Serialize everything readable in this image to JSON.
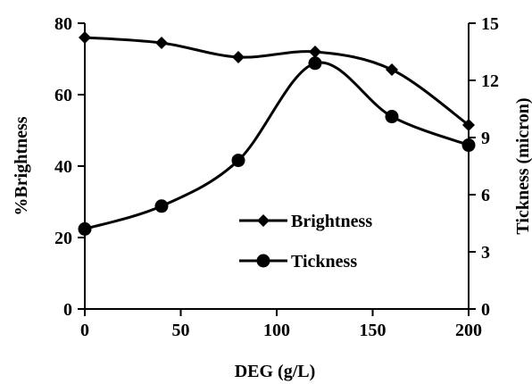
{
  "chart_data": {
    "type": "line",
    "title": "",
    "xlabel": "DEG (g/L)",
    "ylabel_left": "%Brightness",
    "ylabel_right": "Tickness (micron)",
    "x": [
      0,
      40,
      80,
      120,
      160,
      200
    ],
    "xlim": [
      0,
      200
    ],
    "xticks": [
      "0",
      "50",
      "100",
      "150",
      "200"
    ],
    "ylim_left": [
      0,
      80
    ],
    "yticks_left": [
      "0",
      "20",
      "40",
      "60",
      "80"
    ],
    "ylim_right": [
      0,
      15
    ],
    "yticks_right": [
      "0",
      "3",
      "6",
      "9",
      "12",
      "15"
    ],
    "grid": false,
    "legend_position": "center-right",
    "series": [
      {
        "name": "Brightness",
        "axis": "left",
        "marker": "diamond",
        "color": "#000000",
        "values": [
          76,
          74.5,
          70.5,
          72,
          67,
          51.5
        ]
      },
      {
        "name": "Tickness",
        "axis": "right",
        "marker": "circle",
        "color": "#000000",
        "values": [
          4.2,
          5.4,
          7.8,
          12.9,
          10.1,
          8.6
        ]
      }
    ]
  }
}
